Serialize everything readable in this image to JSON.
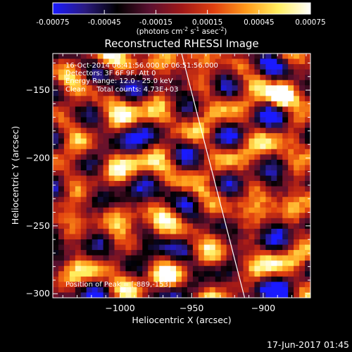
{
  "colors": {
    "background": "#000000",
    "foreground": "#ffffff",
    "colormap": [
      "#1a1aff",
      "#2a1a80",
      "#000000",
      "#5a1030",
      "#a01818",
      "#e04010",
      "#ff9a1a",
      "#ffef60",
      "#ffffff"
    ]
  },
  "colorbar": {
    "ticks": [
      "-0.00075",
      "-0.00045",
      "-0.00015",
      "0.00015",
      "0.00045",
      "0.00075"
    ],
    "tick_values": [
      -0.00075,
      -0.00045,
      -0.00015,
      0.00015,
      0.00045,
      0.00075
    ],
    "range": [
      -0.00075,
      0.00075
    ],
    "unit_prefix": "(photons cm",
    "unit_exp1": "-2",
    "unit_mid": " s",
    "unit_exp2": "-1",
    "unit_mid2": " asec",
    "unit_exp3": "-2",
    "unit_suffix": ")"
  },
  "chart_data": {
    "type": "heatmap",
    "title": "Reconstructed RHESSI Image",
    "xlabel": "Heliocentric X (arcsec)",
    "ylabel": "Heliocentric Y (arcsec)",
    "xlim": [
      -1047,
      -867
    ],
    "ylim": [
      -303,
      -123
    ],
    "x_ticks": [
      -1000,
      -950,
      -900
    ],
    "y_ticks": [
      -150,
      -200,
      -250,
      -300
    ],
    "x_tick_labels": [
      "−1000",
      "−950",
      "−900"
    ],
    "y_tick_labels": [
      "−150",
      "−200",
      "−250",
      "−300"
    ],
    "limb_line": {
      "x": [
        -957,
        -913
      ],
      "y": [
        -123,
        -303
      ]
    },
    "peak": {
      "x": -889,
      "y": -153
    },
    "annotations": [
      "16-Oct-2014 06:41:56.000 to 06:51:56.000",
      "Detectors: 3F 6F 9F, Att 0",
      "Energy Range: 12.0 - 25.0 keV",
      "Clean     Total counts: 4.73E+03",
      "Position of Peak = [-889,-153]"
    ]
  },
  "footer": {
    "timestamp": "17-Jun-2017 01:45"
  }
}
